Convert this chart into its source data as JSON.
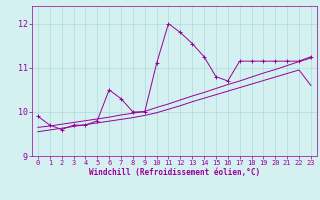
{
  "x": [
    0,
    1,
    2,
    3,
    4,
    5,
    6,
    7,
    8,
    9,
    10,
    11,
    12,
    13,
    14,
    15,
    16,
    17,
    18,
    19,
    20,
    21,
    22,
    23
  ],
  "line1": [
    9.9,
    9.7,
    9.6,
    9.7,
    9.7,
    9.8,
    10.5,
    10.3,
    10.0,
    10.0,
    11.1,
    12.0,
    11.8,
    11.55,
    11.25,
    10.8,
    10.7,
    11.15,
    11.15,
    11.15,
    11.15,
    11.15,
    11.15,
    11.25
  ],
  "line2_reg1": [
    9.65,
    9.68,
    9.72,
    9.76,
    9.8,
    9.84,
    9.88,
    9.93,
    9.97,
    10.01,
    10.1,
    10.18,
    10.27,
    10.36,
    10.44,
    10.53,
    10.62,
    10.7,
    10.79,
    10.88,
    10.96,
    11.05,
    11.14,
    11.22
  ],
  "line2_reg2": [
    9.55,
    9.59,
    9.63,
    9.67,
    9.71,
    9.75,
    9.79,
    9.83,
    9.87,
    9.92,
    9.98,
    10.06,
    10.14,
    10.23,
    10.31,
    10.39,
    10.47,
    10.55,
    10.63,
    10.71,
    10.79,
    10.87,
    10.95,
    10.6
  ],
  "color": "#990099",
  "bg_color": "#d4f0f0",
  "grid_color": "#aadddd",
  "xlabel": "Windchill (Refroidissement éolien,°C)",
  "ylim": [
    9.0,
    12.4
  ],
  "xlim": [
    -0.5,
    23.5
  ],
  "yticks": [
    9,
    10,
    11,
    12
  ],
  "xticks": [
    0,
    1,
    2,
    3,
    4,
    5,
    6,
    7,
    8,
    9,
    10,
    11,
    12,
    13,
    14,
    15,
    16,
    17,
    18,
    19,
    20,
    21,
    22,
    23
  ]
}
